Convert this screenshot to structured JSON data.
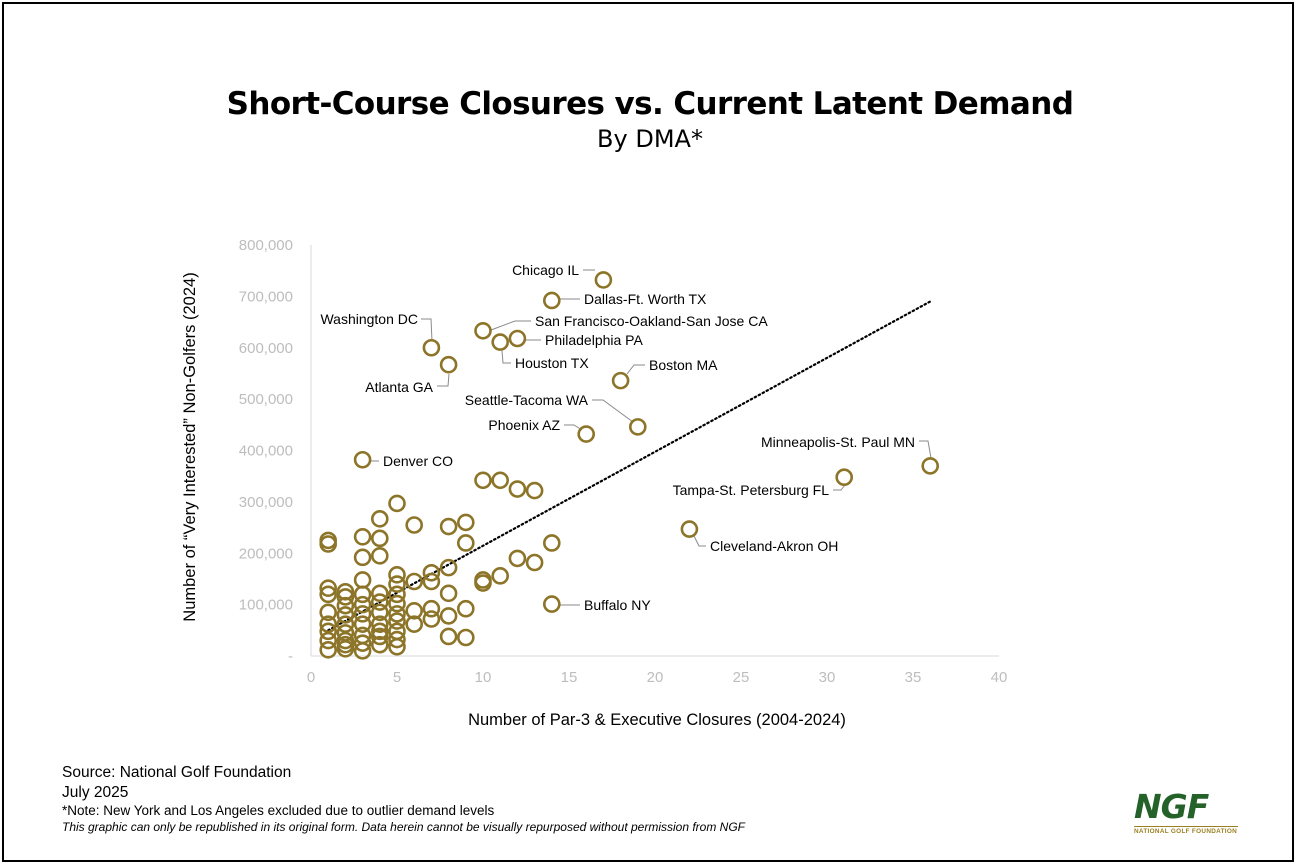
{
  "chart_data": {
    "type": "scatter",
    "title": "Short-Course Closures vs. Current Latent Demand",
    "subtitle": "By DMA*",
    "xlabel": "Number of Par-3 & Executive Closures (2004-2024)",
    "ylabel": "Number of “Very Interested” Non-Golfers (2024)",
    "xlim": [
      0,
      40
    ],
    "ylim": [
      0,
      800000
    ],
    "x_ticks": [
      "0",
      "5",
      "10",
      "15",
      "20",
      "25",
      "30",
      "35",
      "40"
    ],
    "y_ticks": [
      "-",
      "100,000",
      "200,000",
      "300,000",
      "400,000",
      "500,000",
      "600,000",
      "700,000",
      "800,000"
    ],
    "marker_color": "#8c7428",
    "trendline": {
      "style": "dotted",
      "x": [
        1,
        36
      ],
      "y": [
        50000,
        690000
      ]
    },
    "labeled_points": [
      {
        "label": "Chicago IL",
        "x": 17,
        "y": 732000
      },
      {
        "label": "Dallas-Ft. Worth TX",
        "x": 14,
        "y": 692000
      },
      {
        "label": "Washington DC",
        "x": 7,
        "y": 600000
      },
      {
        "label": "San Francisco-Oakland-San Jose CA",
        "x": 10,
        "y": 633000
      },
      {
        "label": "Philadelphia PA",
        "x": 12,
        "y": 618000
      },
      {
        "label": "Houston TX",
        "x": 11,
        "y": 611000
      },
      {
        "label": "Atlanta GA",
        "x": 8,
        "y": 567000
      },
      {
        "label": "Boston MA",
        "x": 18,
        "y": 536000
      },
      {
        "label": "Seattle-Tacoma WA",
        "x": 19,
        "y": 446000
      },
      {
        "label": "Phoenix AZ",
        "x": 16,
        "y": 432000
      },
      {
        "label": "Minneapolis-St. Paul MN",
        "x": 36,
        "y": 370000
      },
      {
        "label": "Denver CO",
        "x": 3,
        "y": 382000
      },
      {
        "label": "Tampa-St. Petersburg FL",
        "x": 31,
        "y": 348000
      },
      {
        "label": "Cleveland-Akron OH",
        "x": 22,
        "y": 247000
      },
      {
        "label": "Buffalo NY",
        "x": 14,
        "y": 101000
      }
    ],
    "points": [
      [
        10,
        342000
      ],
      [
        11,
        342000
      ],
      [
        12,
        325000
      ],
      [
        13,
        322000
      ],
      [
        5,
        297000
      ],
      [
        4,
        267000
      ],
      [
        6,
        255000
      ],
      [
        8,
        252000
      ],
      [
        9,
        260000
      ],
      [
        1,
        225000
      ],
      [
        1,
        218000
      ],
      [
        3,
        232000
      ],
      [
        4,
        229000
      ],
      [
        9,
        220000
      ],
      [
        14,
        220000
      ],
      [
        3,
        192000
      ],
      [
        4,
        195000
      ],
      [
        12,
        190000
      ],
      [
        13,
        182000
      ],
      [
        7,
        162000
      ],
      [
        8,
        172000
      ],
      [
        3,
        148000
      ],
      [
        5,
        158000
      ],
      [
        6,
        145000
      ],
      [
        7,
        145000
      ],
      [
        10,
        148000
      ],
      [
        10,
        142000
      ],
      [
        11,
        156000
      ],
      [
        1,
        132000
      ],
      [
        1,
        120000
      ],
      [
        2,
        125000
      ],
      [
        2,
        115000
      ],
      [
        3,
        120000
      ],
      [
        4,
        122000
      ],
      [
        5,
        140000
      ],
      [
        5,
        120000
      ],
      [
        8,
        122000
      ],
      [
        1,
        85000
      ],
      [
        2,
        98000
      ],
      [
        3,
        100000
      ],
      [
        4,
        105000
      ],
      [
        5,
        102000
      ],
      [
        6,
        88000
      ],
      [
        7,
        92000
      ],
      [
        8,
        78000
      ],
      [
        9,
        92000
      ],
      [
        1,
        62000
      ],
      [
        2,
        62000
      ],
      [
        2,
        80000
      ],
      [
        3,
        82000
      ],
      [
        4,
        85000
      ],
      [
        5,
        82000
      ],
      [
        5,
        68000
      ],
      [
        6,
        62000
      ],
      [
        7,
        72000
      ],
      [
        1,
        48000
      ],
      [
        1,
        30000
      ],
      [
        2,
        45000
      ],
      [
        2,
        30000
      ],
      [
        3,
        62000
      ],
      [
        3,
        40000
      ],
      [
        4,
        48000
      ],
      [
        4,
        62000
      ],
      [
        5,
        48000
      ],
      [
        5,
        32000
      ],
      [
        1,
        12000
      ],
      [
        2,
        14000
      ],
      [
        2,
        22000
      ],
      [
        3,
        25000
      ],
      [
        3,
        10000
      ],
      [
        4,
        22000
      ],
      [
        5,
        18000
      ],
      [
        8,
        38000
      ],
      [
        9,
        36000
      ],
      [
        4,
        38000
      ]
    ]
  },
  "footer": {
    "source": "Source: National Golf Foundation",
    "date": "July 2025",
    "note": "*Note: New York and Los Angeles excluded due to outlier demand levels",
    "disclaimer": "This graphic can only be republished in its original form. Data herein cannot be visually repurposed without permission from NGF"
  },
  "logo": {
    "text": "NGF",
    "subtext": "NATIONAL GOLF FOUNDATION",
    "text_color": "#24622a",
    "accent_color": "#9a8024"
  }
}
